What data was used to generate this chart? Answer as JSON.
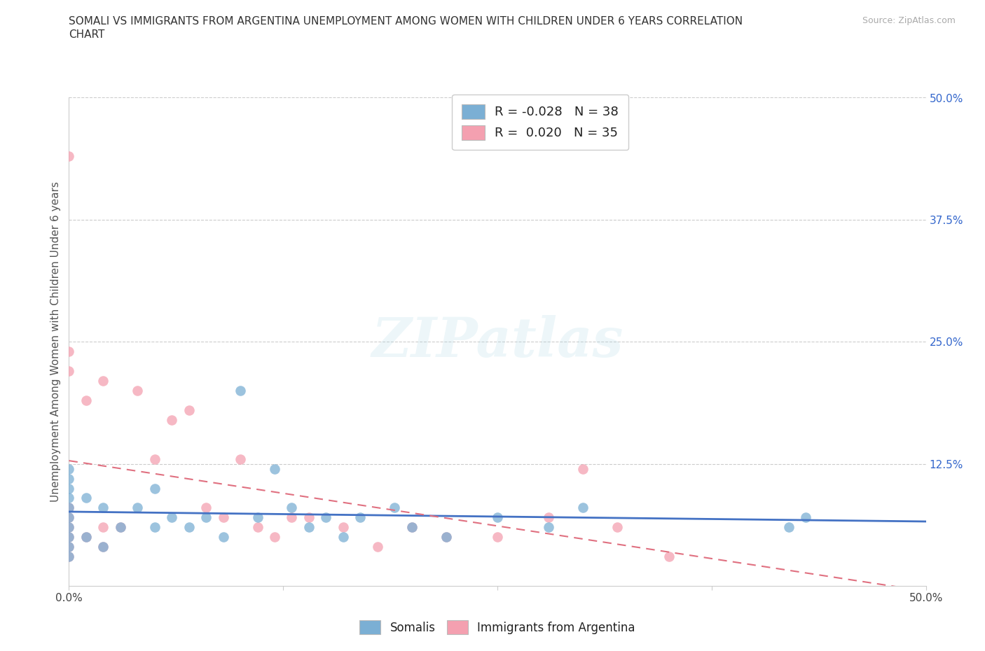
{
  "title_line1": "SOMALI VS IMMIGRANTS FROM ARGENTINA UNEMPLOYMENT AMONG WOMEN WITH CHILDREN UNDER 6 YEARS CORRELATION",
  "title_line2": "CHART",
  "source": "Source: ZipAtlas.com",
  "ylabel": "Unemployment Among Women with Children Under 6 years",
  "xlim": [
    0.0,
    0.5
  ],
  "ylim": [
    0.0,
    0.5
  ],
  "xticks": [
    0.0,
    0.125,
    0.25,
    0.375,
    0.5
  ],
  "xtick_labels": [
    "0.0%",
    "",
    "",
    "",
    "50.0%"
  ],
  "ytick_positions": [
    0.0,
    0.125,
    0.25,
    0.375,
    0.5
  ],
  "ytick_labels_right": [
    "",
    "12.5%",
    "25.0%",
    "37.5%",
    "50.0%"
  ],
  "grid_color": "#cccccc",
  "background_color": "#ffffff",
  "somali_color": "#7bafd4",
  "argentina_color": "#f4a0b0",
  "somali_R": -0.028,
  "somali_N": 38,
  "argentina_R": 0.02,
  "argentina_N": 35,
  "somali_line_color": "#4472c4",
  "argentina_line_color": "#e07080",
  "legend_label_somali": "Somalis",
  "legend_label_argentina": "Immigrants from Argentina",
  "somali_x": [
    0.0,
    0.0,
    0.0,
    0.0,
    0.0,
    0.0,
    0.0,
    0.0,
    0.0,
    0.0,
    0.01,
    0.01,
    0.02,
    0.02,
    0.03,
    0.04,
    0.05,
    0.05,
    0.06,
    0.07,
    0.08,
    0.09,
    0.1,
    0.11,
    0.12,
    0.13,
    0.14,
    0.15,
    0.16,
    0.17,
    0.19,
    0.2,
    0.22,
    0.25,
    0.28,
    0.3,
    0.42,
    0.43
  ],
  "somali_y": [
    0.03,
    0.04,
    0.05,
    0.06,
    0.07,
    0.08,
    0.09,
    0.1,
    0.11,
    0.12,
    0.05,
    0.09,
    0.04,
    0.08,
    0.06,
    0.08,
    0.06,
    0.1,
    0.07,
    0.06,
    0.07,
    0.05,
    0.2,
    0.07,
    0.12,
    0.08,
    0.06,
    0.07,
    0.05,
    0.07,
    0.08,
    0.06,
    0.05,
    0.07,
    0.06,
    0.08,
    0.06,
    0.07
  ],
  "argentina_x": [
    0.0,
    0.0,
    0.0,
    0.0,
    0.0,
    0.0,
    0.0,
    0.0,
    0.0,
    0.01,
    0.01,
    0.02,
    0.02,
    0.02,
    0.03,
    0.04,
    0.05,
    0.06,
    0.07,
    0.08,
    0.09,
    0.1,
    0.11,
    0.12,
    0.13,
    0.14,
    0.16,
    0.18,
    0.2,
    0.22,
    0.25,
    0.28,
    0.3,
    0.32,
    0.35
  ],
  "argentina_y": [
    0.03,
    0.04,
    0.05,
    0.06,
    0.07,
    0.08,
    0.22,
    0.24,
    0.44,
    0.05,
    0.19,
    0.04,
    0.06,
    0.21,
    0.06,
    0.2,
    0.13,
    0.17,
    0.18,
    0.08,
    0.07,
    0.13,
    0.06,
    0.05,
    0.07,
    0.07,
    0.06,
    0.04,
    0.06,
    0.05,
    0.05,
    0.07,
    0.12,
    0.06,
    0.03
  ]
}
